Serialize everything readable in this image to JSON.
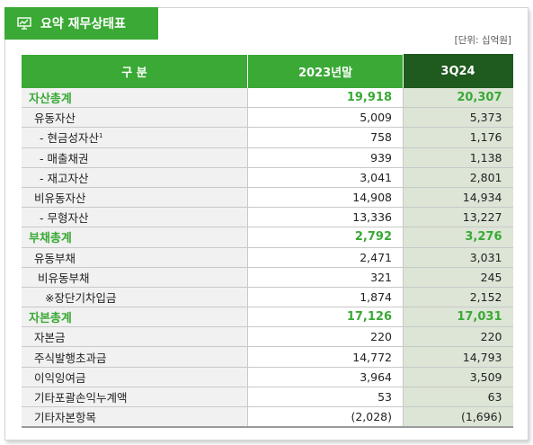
{
  "header": {
    "title": "요약 재무상태표",
    "unit": "[단위: 십억원]"
  },
  "table": {
    "columns": [
      "구 분",
      "2023년말",
      "3Q24"
    ],
    "rows": [
      [
        "자산총계",
        "19,918",
        "20,307"
      ],
      [
        "유동자산",
        "5,009",
        "5,373"
      ],
      [
        "- 현금성자산",
        "758",
        "1,176"
      ],
      [
        "- 매출채권",
        "939",
        "1,138"
      ],
      [
        "- 재고자산",
        "3,041",
        "2,801"
      ],
      [
        "비유동자산",
        "14,908",
        "14,934"
      ],
      [
        "- 무형자산",
        "13,336",
        "13,227"
      ],
      [
        "부채총계",
        "2,792",
        "3,276"
      ],
      [
        "유동부채",
        "2,471",
        "3,031"
      ],
      [
        "비유동부채",
        "321",
        "245"
      ],
      [
        "※장단기차입금",
        "1,874",
        "2,152"
      ],
      [
        "자본총계",
        "17,126",
        "17,031"
      ],
      [
        "자본금",
        "220",
        "220"
      ],
      [
        "주식발행초과금",
        "14,772",
        "14,793"
      ],
      [
        "이익잉여금",
        "3,964",
        "3,509"
      ],
      [
        "기타포괄손익누계액",
        "53",
        "63"
      ],
      [
        "기타자본항목",
        "(2,028)",
        "(1,696)"
      ]
    ],
    "footnote_marker": "1"
  }
}
